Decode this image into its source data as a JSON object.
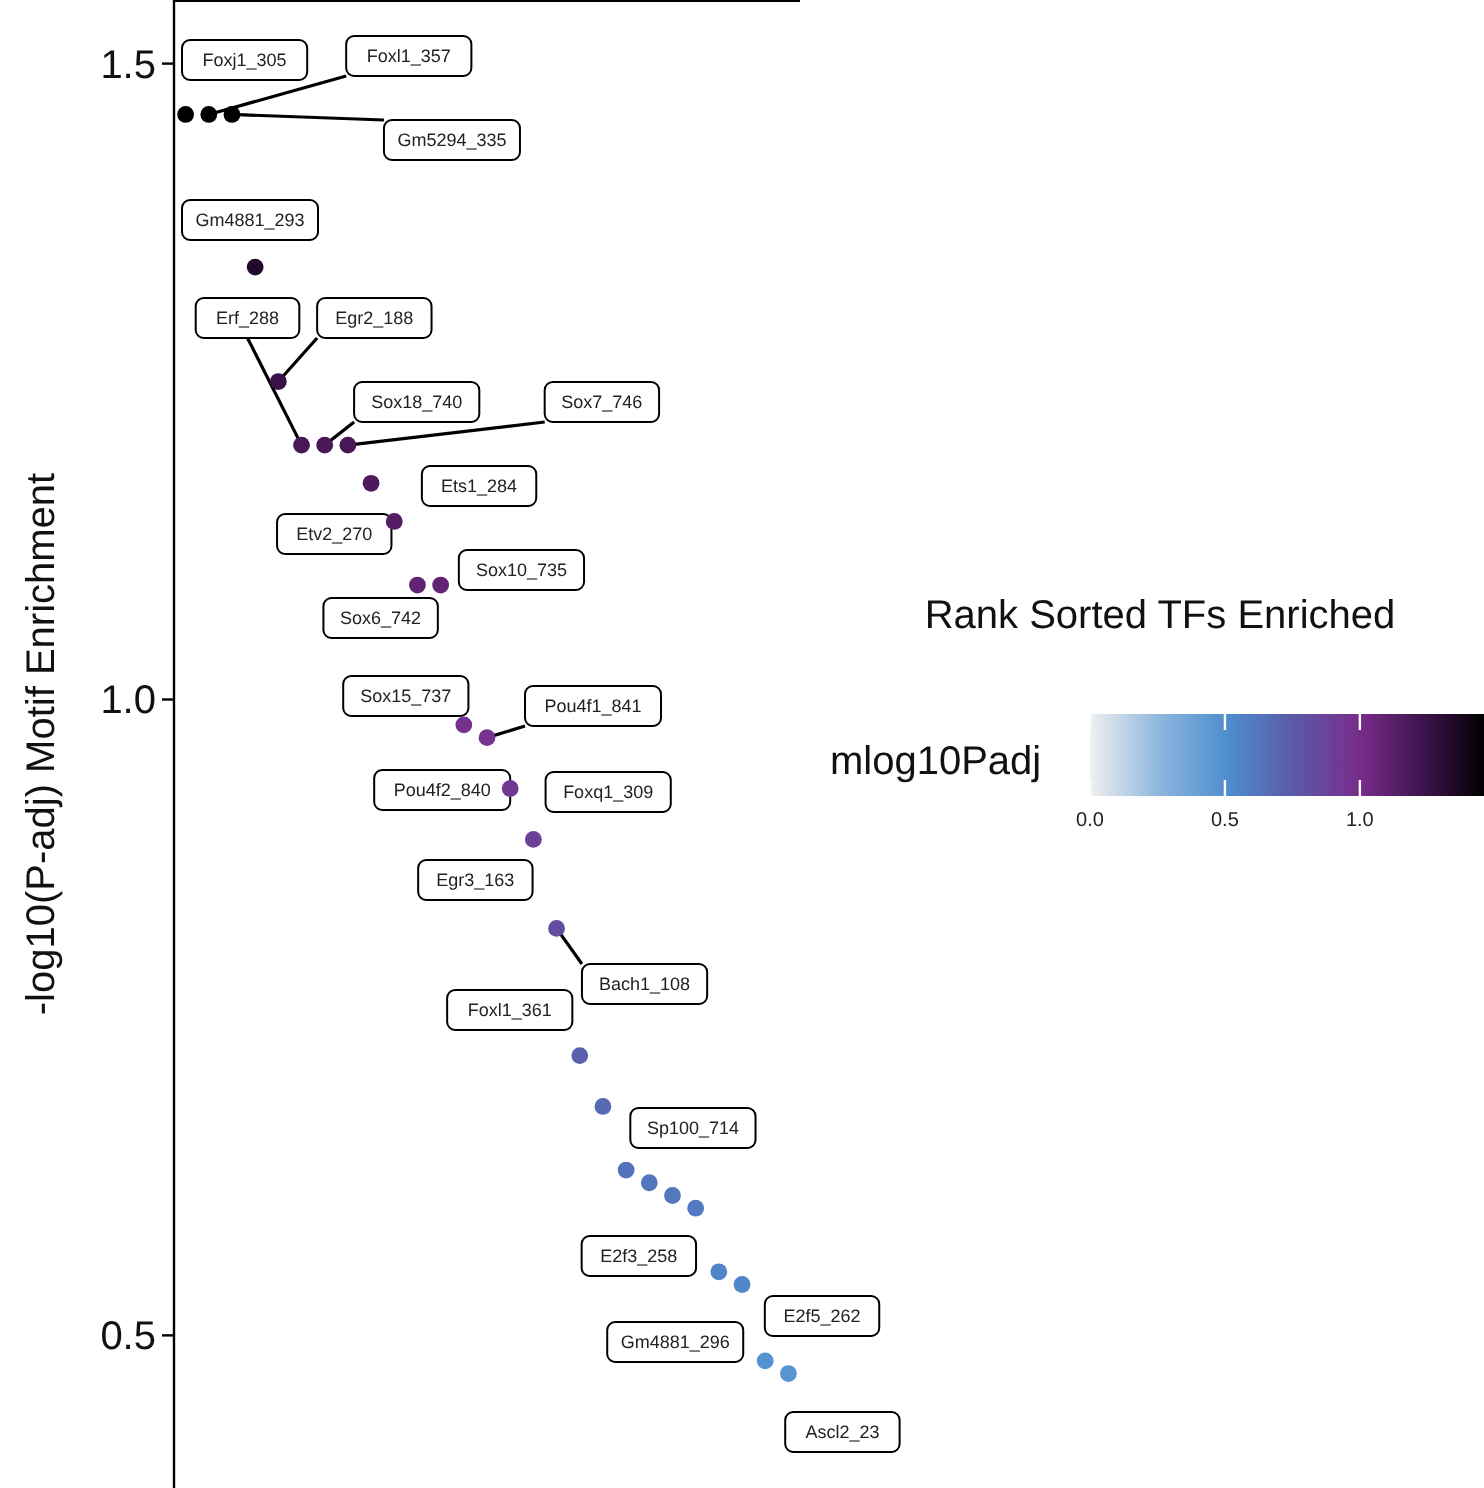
{
  "chart_data": {
    "type": "scatter",
    "title": "Rank Sorted TFs Enriched",
    "ylabel": "-log10(P-adj) Motif Enrichment",
    "clabel": "mlog10Padj",
    "categories": [
      null,
      null,
      null,
      null,
      null,
      null,
      null,
      null,
      null,
      null,
      null,
      null,
      null,
      null,
      null,
      null,
      null,
      null,
      null,
      null,
      null,
      null,
      null,
      null,
      null,
      null,
      null
    ],
    "values": [
      1.46,
      1.46,
      1.46,
      1.34,
      1.25,
      1.2,
      1.2,
      1.2,
      1.17,
      1.14,
      1.09,
      1.09,
      0.98,
      0.97,
      0.93,
      0.89,
      0.82,
      0.72,
      0.68,
      0.63,
      0.62,
      0.61,
      0.6,
      0.55,
      0.54,
      0.48,
      0.47
    ],
    "cvalues": [
      1.46,
      1.46,
      1.46,
      1.34,
      1.25,
      1.2,
      1.2,
      1.2,
      1.17,
      1.14,
      1.09,
      1.09,
      0.98,
      0.97,
      0.93,
      0.89,
      0.82,
      0.72,
      0.68,
      0.63,
      0.62,
      0.61,
      0.6,
      0.55,
      0.54,
      0.48,
      0.47
    ],
    "ylim": [
      0.38,
      1.55
    ],
    "yticks": [
      {
        "value": 0.5,
        "label": "0.5"
      },
      {
        "value": 1,
        "label": "1.0"
      },
      {
        "value": 1.5,
        "label": "1.5"
      }
    ],
    "clim": [
      0,
      1.46
    ],
    "cticks": [
      {
        "value": 0,
        "label": "0.0"
      },
      {
        "value": 0.5,
        "label": "0.5"
      },
      {
        "value": 1,
        "label": "1.0"
      }
    ],
    "tick_labels": "y",
    "grid": false,
    "marker": "circle",
    "annotations": [
      "Foxj1_305",
      "Foxl1_357",
      "Gm5294_335",
      "Gm4881_293",
      "Egr2_188",
      "Erf_288",
      "Sox18_740",
      "Sox7_746",
      "Ets1_284",
      "Etv2_270",
      "Sox10_735",
      "Sox6_742",
      "Sox15_737",
      "Pou4f1_841",
      "Pou4f2_840",
      "Foxq1_309",
      "Egr3_163",
      "Bach1_108",
      "Foxl1_361",
      "Sp100_714",
      "E2f3_258",
      "E2f5_262",
      "Gm4881_296",
      "Ascl2_23"
    ]
  }
}
